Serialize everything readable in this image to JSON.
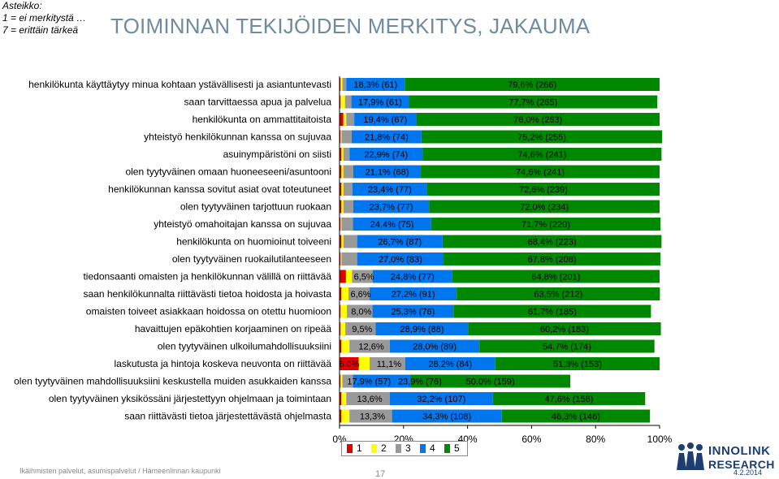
{
  "scale_note": {
    "line1": "Asteikko:",
    "line2": "1 = ei merkitystä …",
    "line3": "7 = erittäin tärkeä"
  },
  "title": "TOIMINNAN TEKIJÖIDEN MERKITYS, JAKAUMA",
  "footer": {
    "left": "Ikäihmisten palvelut, asumispalvelut / Hämeenlinnan kaupunki",
    "page": "17",
    "date": "4.2.2014"
  },
  "logo": {
    "line1": "INNOLINK",
    "line2": "RESEARCH"
  },
  "colors": {
    "1": "#e00000",
    "2": "#ffff00",
    "3": "#999999",
    "4": "#0077ee",
    "5": "#008800"
  },
  "chart_data": {
    "type": "bar",
    "orientation": "horizontal",
    "stacked": "percent",
    "xlim": [
      0,
      100
    ],
    "xticks": [
      "0%",
      "20%",
      "40%",
      "60%",
      "80%",
      "100%"
    ],
    "legend": {
      "entries": [
        "1",
        "2",
        "3",
        "4",
        "5"
      ],
      "position": "bottom"
    },
    "categories": [
      "henkilökunta käyttäytyy minua kohtaan ystävällisesti ja asiantuntevasti",
      "saan tarvittaessa apua ja palvelua",
      "henkilökunta on ammattitaitoista",
      "yhteistyö henkilökunnan kanssa on sujuvaa",
      "asuinympäristöni on siisti",
      "olen tyytyväinen omaan huoneeseeni/asuntooni",
      "henkilökunnan kanssa sovitut asiat ovat toteutuneet",
      "olen tyytyväinen tarjottuun ruokaan",
      "yhteistyö omahoitajan kanssa on sujuvaa",
      "henkilökunta on huomioinut toiveeni",
      "olen tyytyväinen ruokailutilanteeseen",
      "tiedonsaanti omaisten ja henkilökunnan välillä on riittävää",
      "saan henkilökunnalta riittävästi tietoa hoidosta ja hoivasta",
      "omaisten toiveet asiakkaan hoidossa on otettu huomioon",
      "havaittujen epäkohtien korjaaminen on ripeää",
      "olen tyytyväinen ulkoilumahdollisuuksiini",
      "laskutusta ja hintoja koskeva neuvonta on riittävää",
      "olen tyytyväinen mahdollisuuksiini keskustella muiden asukkaiden kanssa",
      "olen tyytyväinen yksikössäni järjestettyyn ohjelmaan ja toimintaan",
      "saan riittävästi tietoa järjestettävästä ohjelmasta"
    ],
    "series": [
      {
        "name": "1",
        "values": [
          0.3,
          0.3,
          1.2,
          0.3,
          0.6,
          0.6,
          0.6,
          0.6,
          0.3,
          0.6,
          0.3,
          2.0,
          0.6,
          0.3,
          0.3,
          0.6,
          6.0,
          0.3,
          0.6,
          0.6
        ]
      },
      {
        "name": "2",
        "values": [
          0.6,
          1.4,
          0.9,
          0.3,
          0.6,
          0.6,
          0.6,
          0.6,
          0.3,
          0.6,
          0.3,
          1.9,
          2.2,
          2.0,
          1.5,
          2.5,
          3.4,
          0.6,
          1.5,
          2.5
        ]
      },
      {
        "name": "3",
        "values": [
          1.2,
          2.0,
          2.5,
          3.2,
          1.9,
          3.1,
          2.8,
          3.1,
          3.6,
          4.3,
          4.9,
          6.5,
          6.6,
          8.0,
          9.5,
          12.6,
          11.1,
          3.3,
          13.6,
          13.3
        ]
      },
      {
        "name": "4",
        "values": [
          18.3,
          17.9,
          19.4,
          21.8,
          22.9,
          21.1,
          23.4,
          23.7,
          24.4,
          26.7,
          27.0,
          24.8,
          27.2,
          25.3,
          28.9,
          28.0,
          28.2,
          17.9,
          32.2,
          34.3
        ]
      },
      {
        "name": "5",
        "values": [
          79.6,
          77.7,
          76.0,
          75.2,
          74.6,
          74.6,
          72.6,
          72.0,
          71.7,
          68.4,
          67.8,
          64.8,
          63.5,
          61.7,
          60.2,
          54.7,
          51.3,
          50.0,
          47.6,
          46.3
        ]
      }
    ],
    "data_labels": [
      {
        "s3": "",
        "s4": "18,3% (61)",
        "s5": "79,6% (266)"
      },
      {
        "s3": "",
        "s4": "17,9% (61)",
        "s5": "77,7% (265)"
      },
      {
        "s3": "",
        "s4": "19,4% (67)",
        "s5": "76,0% (263)"
      },
      {
        "s3": "",
        "s4": "21,8% (74)",
        "s5": "75,2% (255)"
      },
      {
        "s3": "",
        "s4": "22,9% (74)",
        "s5": "74,6% (241)"
      },
      {
        "s3": "",
        "s4": "21,1% (68)",
        "s5": "74,6% (241)"
      },
      {
        "s3": "",
        "s4": "23,4% (77)",
        "s5": "72,6% (239)"
      },
      {
        "s3": "",
        "s4": "23,7% (77)",
        "s5": "72,0% (234)"
      },
      {
        "s3": "",
        "s4": "24,4% (75)",
        "s5": "71,7% (220)"
      },
      {
        "s3": "",
        "s4": "26,7% (87)",
        "s5": "68,4% (223)"
      },
      {
        "s3": "",
        "s4": "27,0% (83)",
        "s5": "67,8% (208)"
      },
      {
        "s3": "6,5%",
        "s4": "24,8% (77)",
        "s5": "64,8% (201)"
      },
      {
        "s3": "6,6%",
        "s4": "27,2% (91)",
        "s5": "63,5% (212)"
      },
      {
        "s3": "8,0%",
        "s4": "25,3% (76)",
        "s5": "61,7% (185)"
      },
      {
        "s3": "9,5%",
        "s4": "28,9% (88)",
        "s5": "60,2% (183)"
      },
      {
        "s3": "12,6%",
        "s4": "28,0% (89)",
        "s5": "54,7% (174)"
      },
      {
        "s1": "6,0%",
        "s3": "11,1%",
        "s4": "28,2% (84)",
        "s5": "51,3% (153)"
      },
      {
        "s3": "",
        "s4": "17,9% (57)",
        "s4b": "23,9% (76)",
        "s5": "50,0% (159)"
      },
      {
        "s3": "13,6%",
        "s4": "32,2% (107)",
        "s5": "47,6% (158)"
      },
      {
        "s3": "13,3%",
        "s4": "34,3% (108)",
        "s5": "46,3% (146)"
      }
    ]
  }
}
